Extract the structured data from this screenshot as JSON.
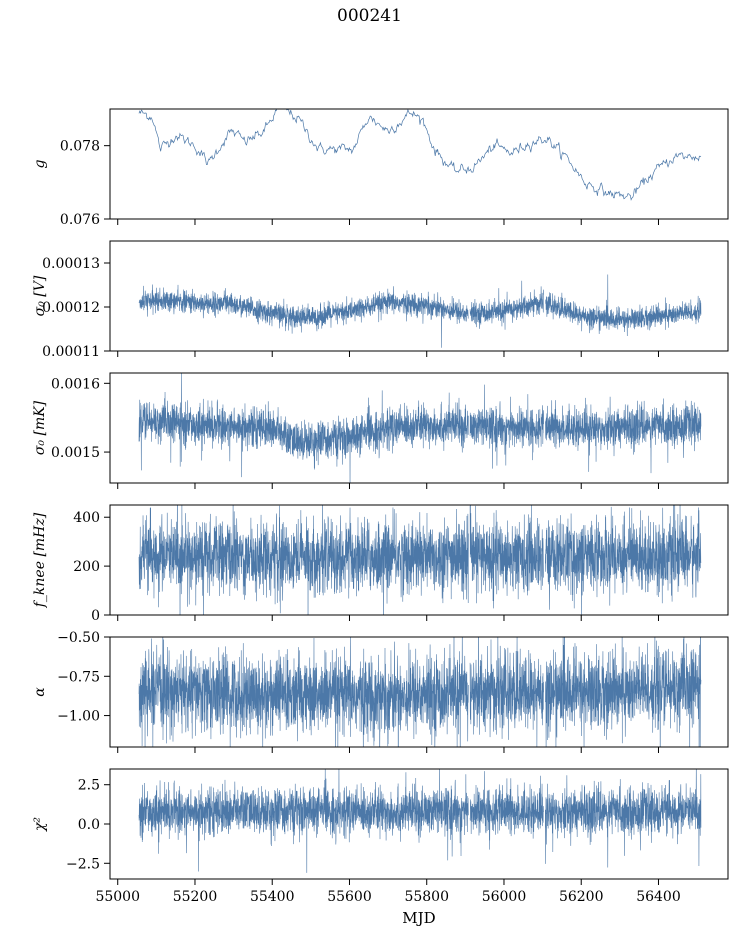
{
  "figure": {
    "title": "000241",
    "xlabel": "MJD"
  },
  "colors": {
    "series": "#4c78a8",
    "axis": "#000000"
  },
  "chart_data": [
    {
      "type": "line",
      "ylabel": "g",
      "xlim": [
        54980,
        56580
      ],
      "ylim": [
        0.076,
        0.079
      ],
      "yticks": [
        0.076,
        0.078
      ],
      "yticklabels": [
        "0.076",
        "0.078"
      ],
      "x_range": [
        55055,
        56510
      ],
      "shape": "smooth",
      "noise": 6e-05,
      "profile": [
        [
          55055,
          0.0789
        ],
        [
          55090,
          0.0788
        ],
        [
          55110,
          0.0779
        ],
        [
          55150,
          0.0783
        ],
        [
          55200,
          0.078
        ],
        [
          55235,
          0.0775
        ],
        [
          55265,
          0.078
        ],
        [
          55295,
          0.0784
        ],
        [
          55330,
          0.0781
        ],
        [
          55380,
          0.0784
        ],
        [
          55420,
          0.0791
        ],
        [
          55470,
          0.0787
        ],
        [
          55520,
          0.0779
        ],
        [
          55560,
          0.0779
        ],
        [
          55610,
          0.0779
        ],
        [
          55650,
          0.0788
        ],
        [
          55700,
          0.0784
        ],
        [
          55760,
          0.0789
        ],
        [
          55790,
          0.0787
        ],
        [
          55820,
          0.0779
        ],
        [
          55870,
          0.0773
        ],
        [
          55920,
          0.0774
        ],
        [
          55975,
          0.078
        ],
        [
          56020,
          0.0778
        ],
        [
          56070,
          0.0781
        ],
        [
          56110,
          0.0782
        ],
        [
          56160,
          0.0777
        ],
        [
          56210,
          0.077
        ],
        [
          56270,
          0.0767
        ],
        [
          56330,
          0.0766
        ],
        [
          56380,
          0.0772
        ],
        [
          56440,
          0.0777
        ],
        [
          56510,
          0.0777
        ]
      ]
    },
    {
      "type": "line",
      "ylabel": "σ₀ [V]",
      "xlim": [
        54980,
        56580
      ],
      "ylim": [
        0.00011,
        0.000135
      ],
      "yticks": [
        0.00011,
        0.00012,
        0.00013
      ],
      "yticklabels": [
        "0.00011",
        "0.00012",
        "0.00013"
      ],
      "x_range": [
        55055,
        56510
      ],
      "shape": "band",
      "halfwidth": 2.2e-06,
      "gaps": [
        55910,
        56105
      ],
      "profile": [
        [
          55055,
          0.000121
        ],
        [
          55100,
          0.0001215
        ],
        [
          55200,
          0.000121
        ],
        [
          55300,
          0.0001205
        ],
        [
          55400,
          0.0001185
        ],
        [
          55500,
          0.0001175
        ],
        [
          55600,
          0.000119
        ],
        [
          55700,
          0.000121
        ],
        [
          55800,
          0.0001205
        ],
        [
          55900,
          0.0001185
        ],
        [
          56000,
          0.000119
        ],
        [
          56100,
          0.000121
        ],
        [
          56200,
          0.000118
        ],
        [
          56300,
          0.000117
        ],
        [
          56400,
          0.000118
        ],
        [
          56510,
          0.000119
        ]
      ]
    },
    {
      "type": "line",
      "ylabel": "σ₀ [mK]",
      "xlim": [
        54980,
        56580
      ],
      "ylim": [
        0.001455,
        0.001615
      ],
      "yticks": [
        0.0015,
        0.0016
      ],
      "yticklabels": [
        "0.0015",
        "0.0016"
      ],
      "x_range": [
        55055,
        56510
      ],
      "shape": "band",
      "halfwidth": 2.5e-05,
      "gaps": [
        55910,
        56105
      ],
      "profile": [
        [
          55055,
          0.001545
        ],
        [
          55200,
          0.00154
        ],
        [
          55400,
          0.001535
        ],
        [
          55450,
          0.001515
        ],
        [
          55600,
          0.00152
        ],
        [
          55700,
          0.001535
        ],
        [
          55800,
          0.00154
        ],
        [
          56000,
          0.001535
        ],
        [
          56200,
          0.001535
        ],
        [
          56510,
          0.00154
        ]
      ]
    },
    {
      "type": "line",
      "ylabel": "f_knee [mHz]",
      "xlim": [
        54980,
        56580
      ],
      "ylim": [
        0,
        450
      ],
      "yticks": [
        0,
        200,
        400
      ],
      "yticklabels": [
        "0",
        "200",
        "400"
      ],
      "x_range": [
        55055,
        56510
      ],
      "shape": "band",
      "halfwidth": 130,
      "gaps": [
        55910,
        56105
      ],
      "profile": [
        [
          55055,
          240
        ],
        [
          55300,
          240
        ],
        [
          55600,
          235
        ],
        [
          56000,
          240
        ],
        [
          56510,
          245
        ]
      ]
    },
    {
      "type": "line",
      "ylabel": "α",
      "xlim": [
        54980,
        56580
      ],
      "ylim": [
        -1.2,
        -0.5
      ],
      "yticks": [
        -1.0,
        -0.75,
        -0.5
      ],
      "yticklabels": [
        "−1.00",
        "−0.75",
        "−0.50"
      ],
      "x_range": [
        55055,
        56510
      ],
      "shape": "band",
      "halfwidth": 0.22,
      "gaps": [
        55910,
        56105
      ],
      "profile": [
        [
          55055,
          -0.85
        ],
        [
          55300,
          -0.86
        ],
        [
          55600,
          -0.88
        ],
        [
          55900,
          -0.86
        ],
        [
          56200,
          -0.85
        ],
        [
          56510,
          -0.82
        ]
      ]
    },
    {
      "type": "line",
      "ylabel": "χ²",
      "xlim": [
        54980,
        56580
      ],
      "ylim": [
        -3.5,
        3.5
      ],
      "yticks": [
        -2.5,
        0.0,
        2.5
      ],
      "yticklabels": [
        "−2.5",
        "0.0",
        "2.5"
      ],
      "xticks": [
        55000,
        55200,
        55400,
        55600,
        55800,
        56000,
        56200,
        56400
      ],
      "xticklabels": [
        "55000",
        "55200",
        "55400",
        "55600",
        "55800",
        "56000",
        "56200",
        "56400"
      ],
      "x_range": [
        55055,
        56510
      ],
      "shape": "band",
      "halfwidth": 1.3,
      "gaps": [
        55910,
        56105
      ],
      "profile": [
        [
          55055,
          0.8
        ],
        [
          56510,
          0.8
        ]
      ]
    }
  ]
}
